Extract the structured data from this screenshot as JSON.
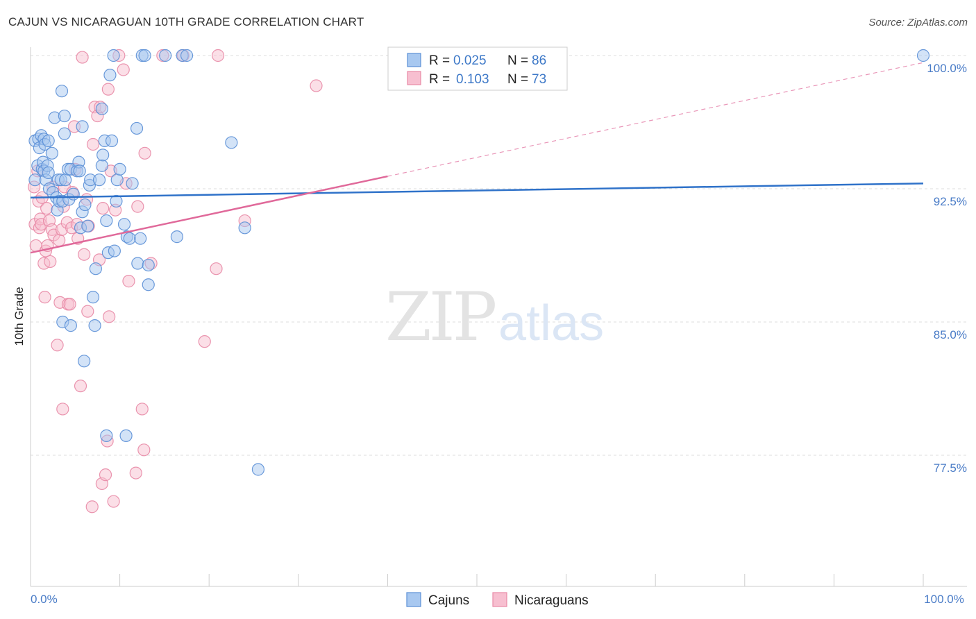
{
  "title": "CAJUN VS NICARAGUAN 10TH GRADE CORRELATION CHART",
  "source": "Source: ZipAtlas.com",
  "watermark": {
    "zip": "ZIP",
    "atlas": "atlas"
  },
  "colors": {
    "cajun_fill": "#a8c8f0",
    "cajun_stroke": "#5b8fd6",
    "cajun_line": "#2f72c9",
    "nic_fill": "#f7bfd0",
    "nic_stroke": "#e88aa6",
    "nic_line": "#e0699a",
    "grid": "#dddddd",
    "axis_text": "#4a7cc7"
  },
  "stats_legend": [
    {
      "r_label": "R =",
      "r_value": "0.025",
      "n_label": "N =",
      "n_value": "86"
    },
    {
      "r_label": "R =",
      "r_value": "0.103",
      "n_label": "N =",
      "n_value": "73"
    }
  ],
  "chart_data": {
    "type": "scatter",
    "title": "CAJUN VS NICARAGUAN 10TH GRADE CORRELATION CHART",
    "xlabel": "",
    "ylabel": "10th Grade",
    "xlim": [
      0,
      105
    ],
    "ylim": [
      71,
      101.6
    ],
    "x_tick_labels": [
      {
        "value": 0,
        "label": "0.0%"
      },
      {
        "value": 100,
        "label": "100.0%"
      }
    ],
    "y_ticks": [
      {
        "value": 100,
        "label": "100.0%"
      },
      {
        "value": 92.5,
        "label": "92.5%"
      },
      {
        "value": 85,
        "label": "85.0%"
      },
      {
        "value": 77.5,
        "label": "77.5%"
      }
    ],
    "grid": "horizontal dashed",
    "legend": [
      "Cajuns",
      "Nicaraguans"
    ],
    "series": [
      {
        "name": "Cajuns",
        "trend": {
          "x0": 0,
          "y0": 92.0,
          "x1": 100,
          "y1": 92.8
        },
        "points": [
          [
            0.5,
            93
          ],
          [
            0.5,
            95.2
          ],
          [
            0.8,
            93.8
          ],
          [
            0.9,
            95.3
          ],
          [
            1,
            94.8
          ],
          [
            1.2,
            95.5
          ],
          [
            1.3,
            93.6
          ],
          [
            1.4,
            94
          ],
          [
            1.5,
            95.3
          ],
          [
            1.5,
            93.5
          ],
          [
            1.6,
            95
          ],
          [
            1.7,
            93
          ],
          [
            1.9,
            93.8
          ],
          [
            2,
            95.2
          ],
          [
            2,
            93.4
          ],
          [
            2.1,
            92.5
          ],
          [
            2.4,
            94.5
          ],
          [
            2.5,
            92.3
          ],
          [
            2.7,
            96.5
          ],
          [
            2.9,
            92
          ],
          [
            3,
            91.3
          ],
          [
            3.1,
            93
          ],
          [
            3.2,
            91.8
          ],
          [
            3.4,
            93
          ],
          [
            3.5,
            98
          ],
          [
            3.6,
            91.8
          ],
          [
            3.8,
            95.6
          ],
          [
            3.8,
            96.6
          ],
          [
            3.9,
            93
          ],
          [
            4.2,
            93.6
          ],
          [
            4.3,
            91.9
          ],
          [
            4.5,
            93.6
          ],
          [
            4.8,
            92.2
          ],
          [
            5.2,
            93.5
          ],
          [
            5.4,
            94
          ],
          [
            5.5,
            93.5
          ],
          [
            5.6,
            90.3
          ],
          [
            5.8,
            96
          ],
          [
            5.8,
            91.2
          ],
          [
            6.1,
            91.6
          ],
          [
            6.4,
            90.4
          ],
          [
            6.6,
            92.7
          ],
          [
            6.7,
            93
          ],
          [
            7,
            86.4
          ],
          [
            7.2,
            84.8
          ],
          [
            7.3,
            88
          ],
          [
            7.7,
            93
          ],
          [
            8,
            97
          ],
          [
            8,
            93.8
          ],
          [
            8.1,
            94.4
          ],
          [
            8.3,
            95.2
          ],
          [
            8.5,
            90.7
          ],
          [
            8.7,
            88.9
          ],
          [
            8.9,
            98.9
          ],
          [
            9.1,
            95.2
          ],
          [
            9.3,
            100
          ],
          [
            9.4,
            89
          ],
          [
            9.6,
            91.8
          ],
          [
            9.7,
            93
          ],
          [
            10,
            93.6
          ],
          [
            10.5,
            90.5
          ],
          [
            10.8,
            89.8
          ],
          [
            11.1,
            89.7
          ],
          [
            11.4,
            92.8
          ],
          [
            11.9,
            95.9
          ],
          [
            12,
            88.3
          ],
          [
            12.3,
            89.7
          ],
          [
            12.5,
            100
          ],
          [
            12.8,
            100
          ],
          [
            13.2,
            88.2
          ],
          [
            13.2,
            87.1
          ],
          [
            15.1,
            100
          ],
          [
            16.4,
            89.8
          ],
          [
            17,
            100
          ],
          [
            17.5,
            100
          ],
          [
            22.5,
            95.1
          ],
          [
            24,
            90.3
          ],
          [
            25.5,
            76.7
          ],
          [
            100,
            100
          ],
          [
            3.6,
            85
          ],
          [
            4.5,
            84.8
          ],
          [
            6,
            82.8
          ],
          [
            8.5,
            78.6
          ],
          [
            10.7,
            78.6
          ]
        ]
      },
      {
        "name": "Nicaraguans",
        "trend": {
          "x0": 0,
          "y0": 88.9,
          "x1": 40,
          "y1": 93.2
        },
        "trend_ext": {
          "x0": 40,
          "y0": 93.2,
          "x1": 100,
          "y1": 99.6
        },
        "points": [
          [
            0.4,
            92.6
          ],
          [
            0.5,
            90.5
          ],
          [
            0.6,
            89.3
          ],
          [
            0.8,
            93.5
          ],
          [
            0.9,
            91.8
          ],
          [
            1,
            90.3
          ],
          [
            1.1,
            90.8
          ],
          [
            1.2,
            90.5
          ],
          [
            1.3,
            92
          ],
          [
            1.5,
            88.3
          ],
          [
            1.6,
            86.4
          ],
          [
            1.7,
            89
          ],
          [
            1.8,
            91.4
          ],
          [
            1.9,
            89.3
          ],
          [
            2.1,
            90.7
          ],
          [
            2.2,
            88.4
          ],
          [
            2.4,
            90.2
          ],
          [
            2.5,
            92.6
          ],
          [
            2.6,
            89.9
          ],
          [
            3,
            83.7
          ],
          [
            3.2,
            89.6
          ],
          [
            3.3,
            86.1
          ],
          [
            3.5,
            90.2
          ],
          [
            3.6,
            80.1
          ],
          [
            3.7,
            91.5
          ],
          [
            3.8,
            92.6
          ],
          [
            4.1,
            90.6
          ],
          [
            4.2,
            86
          ],
          [
            4.4,
            86
          ],
          [
            4.6,
            90.3
          ],
          [
            4.7,
            92.3
          ],
          [
            4.9,
            96
          ],
          [
            5,
            93.6
          ],
          [
            5.2,
            90.5
          ],
          [
            5.3,
            89.7
          ],
          [
            5.6,
            81.4
          ],
          [
            5.8,
            99.9
          ],
          [
            6,
            88.8
          ],
          [
            6.3,
            91.9
          ],
          [
            6.4,
            85.6
          ],
          [
            6.5,
            90.4
          ],
          [
            6.9,
            74.6
          ],
          [
            7,
            95
          ],
          [
            7.2,
            97.1
          ],
          [
            7.5,
            96.6
          ],
          [
            7.7,
            88.5
          ],
          [
            7.8,
            97.1
          ],
          [
            8,
            75.9
          ],
          [
            8.1,
            91.4
          ],
          [
            8.4,
            76.4
          ],
          [
            8.6,
            78.3
          ],
          [
            8.7,
            98.1
          ],
          [
            8.8,
            85.3
          ],
          [
            9,
            93.5
          ],
          [
            9.3,
            74.9
          ],
          [
            9.5,
            91.3
          ],
          [
            9.9,
            100
          ],
          [
            10.4,
            99.2
          ],
          [
            10.7,
            92.8
          ],
          [
            11,
            87.3
          ],
          [
            11.8,
            76.5
          ],
          [
            12,
            91.5
          ],
          [
            12.5,
            80.1
          ],
          [
            12.8,
            94.5
          ],
          [
            13.5,
            88.3
          ],
          [
            14.8,
            100
          ],
          [
            17.1,
            100
          ],
          [
            19.5,
            83.9
          ],
          [
            20.8,
            88
          ],
          [
            21,
            100
          ],
          [
            24,
            90.7
          ],
          [
            32,
            98.3
          ],
          [
            12.7,
            77.8
          ]
        ]
      }
    ]
  }
}
